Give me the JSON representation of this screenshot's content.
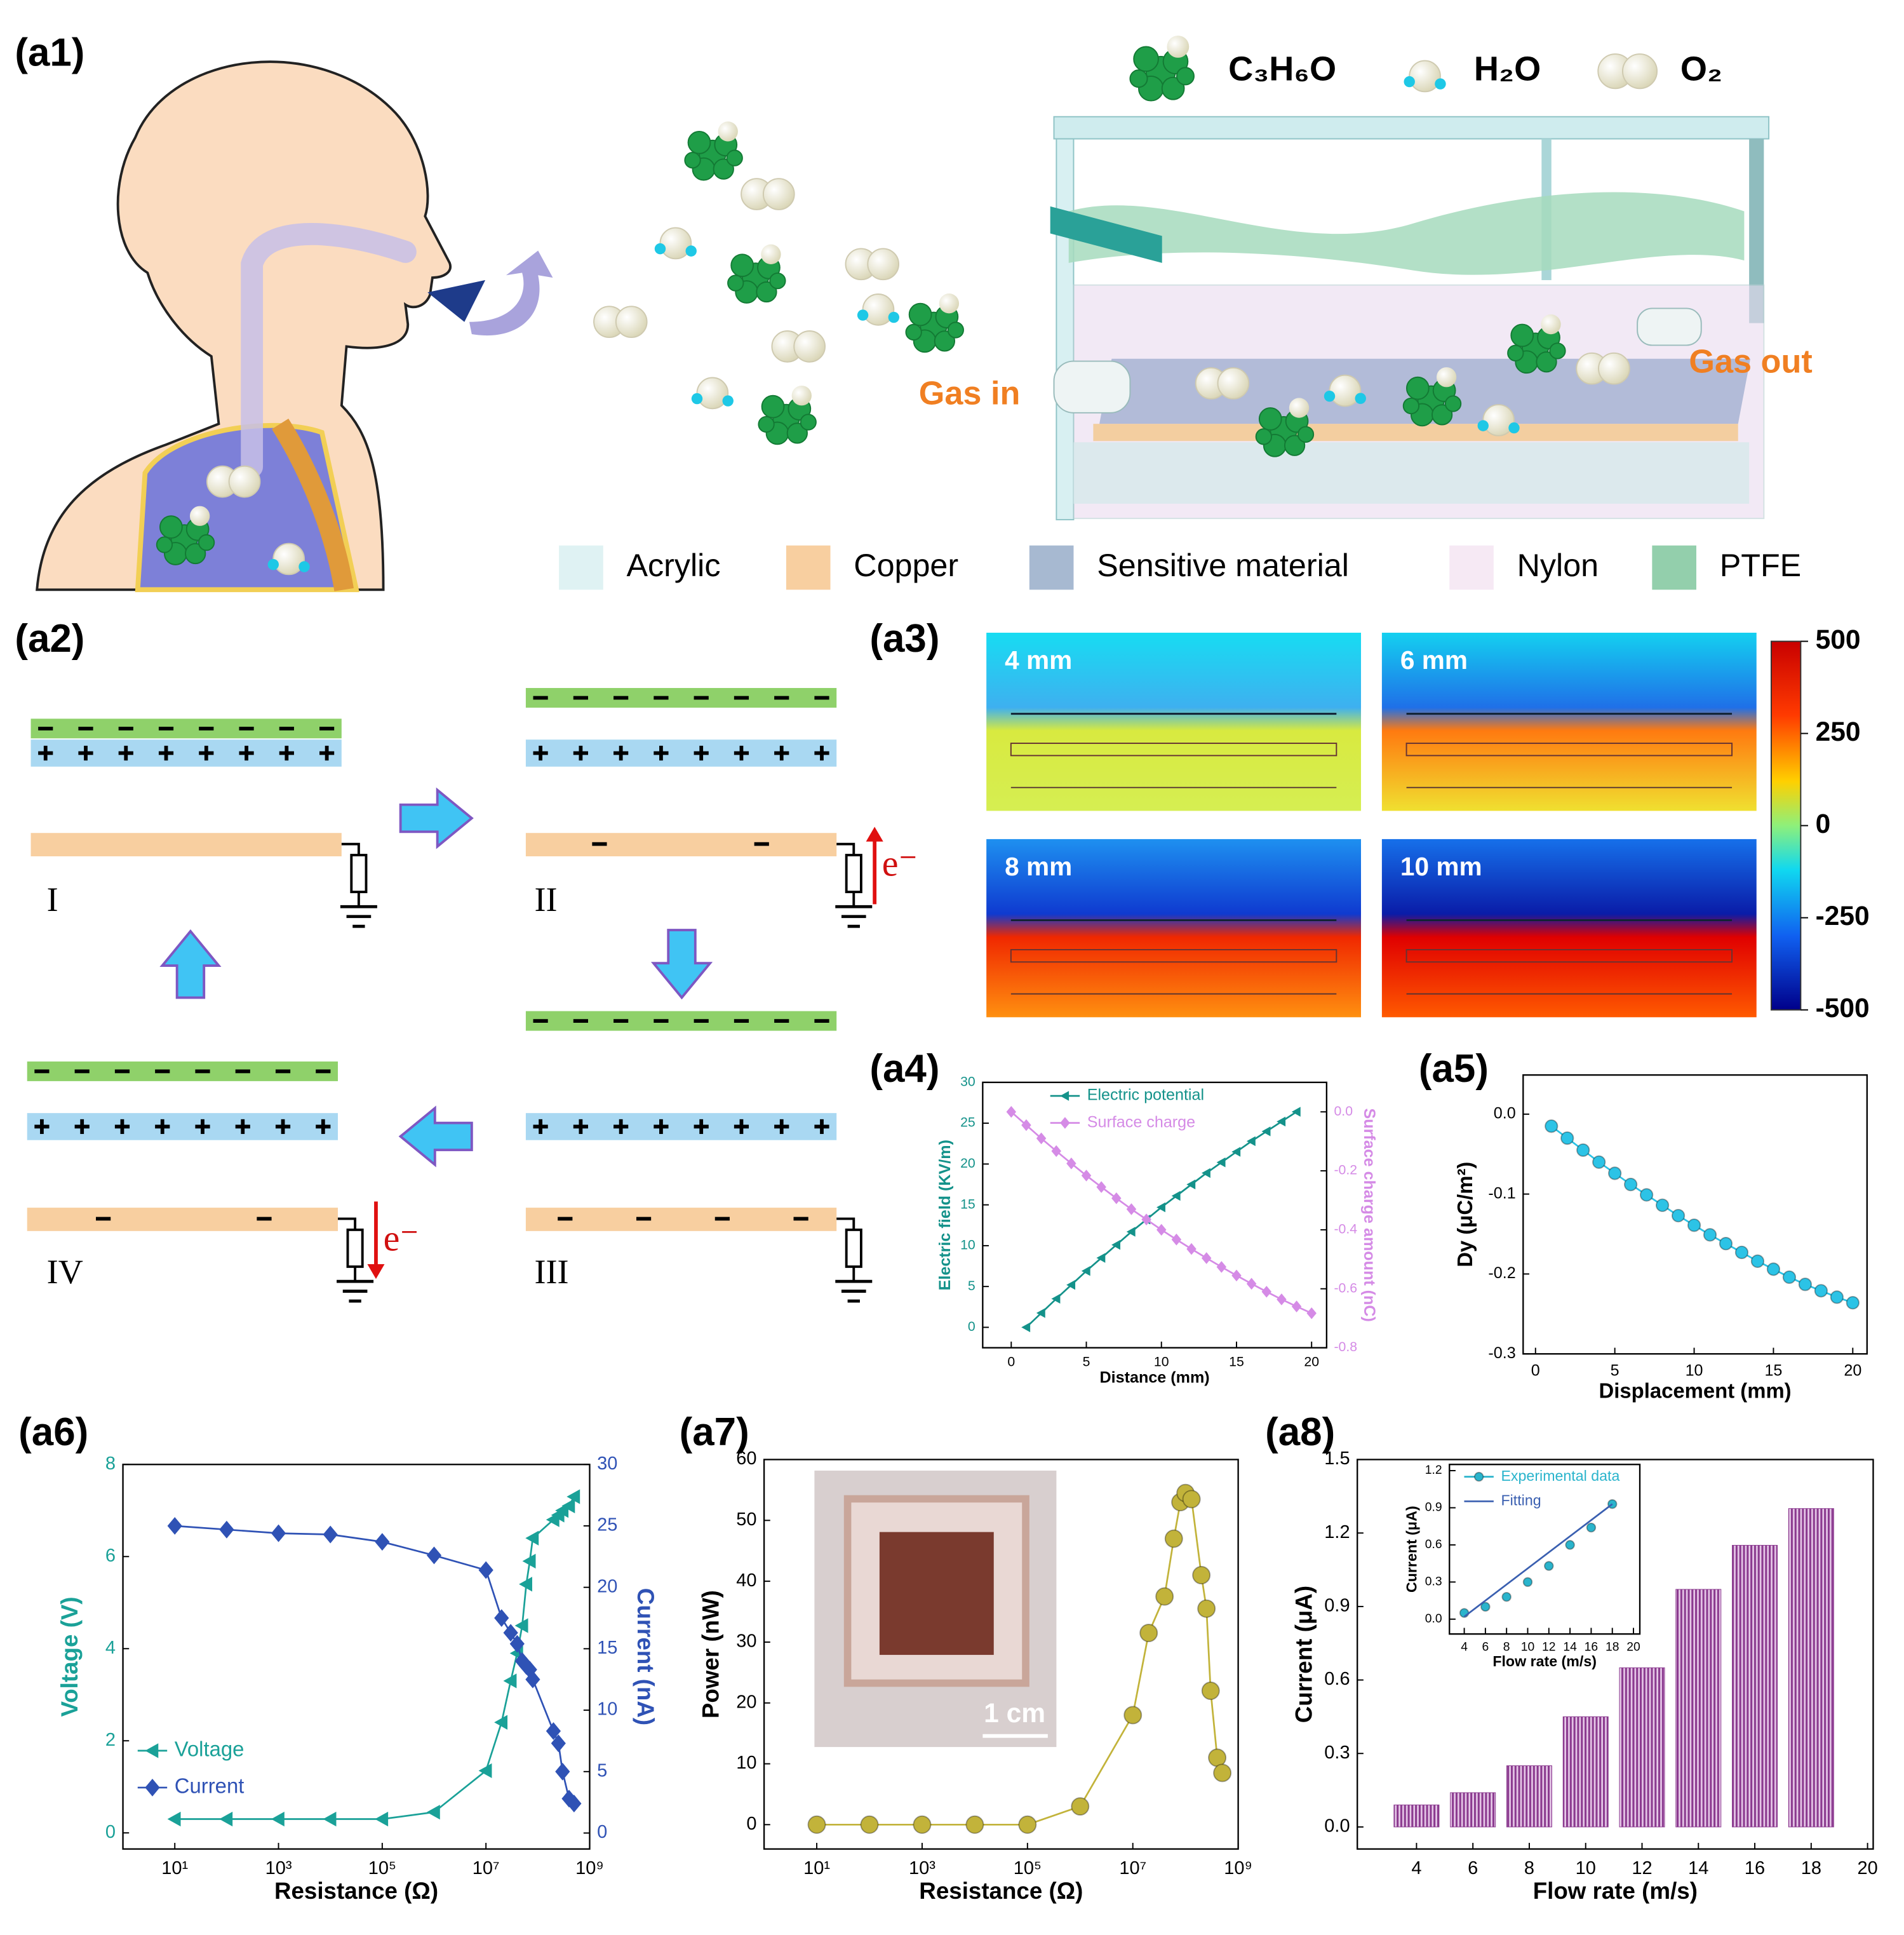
{
  "panel_labels": [
    "(a1)",
    "(a2)",
    "(a3)",
    "(a4)",
    "(a5)",
    "(a6)",
    "(a7)",
    "(a8)"
  ],
  "a1": {
    "molecules": [
      {
        "label": "C₃H₆O"
      },
      {
        "label": "H₂O"
      },
      {
        "label": "O₂"
      }
    ],
    "gas_in": "Gas in",
    "gas_out": "Gas out",
    "legend": [
      {
        "name": "Acrylic",
        "color": "#dff2f3"
      },
      {
        "name": "Copper",
        "color": "#f8cfa0"
      },
      {
        "name": "Sensitive material",
        "color": "#a7b9d1"
      },
      {
        "name": "Nylon",
        "color": "#f6e9f4"
      },
      {
        "name": "PTFE",
        "color": "#93cfac"
      }
    ]
  },
  "a2": {
    "stages": [
      "I",
      "II",
      "III",
      "IV"
    ],
    "electron": "e⁻"
  },
  "a3": {
    "gaps": [
      "4 mm",
      "6 mm",
      "8 mm",
      "10 mm"
    ],
    "clim": [
      -500,
      500
    ],
    "colorbar_ticks": [
      500,
      250,
      0,
      -250,
      -500
    ]
  },
  "chart_data": [
    {
      "type": "line",
      "xlabel": "Distance (mm)",
      "ylabel": "Electric field (KV/m)",
      "y2label": "Surface charge amount (nC)",
      "x": [
        0,
        1,
        2,
        3,
        4,
        5,
        6,
        7,
        8,
        9,
        10,
        11,
        12,
        13,
        14,
        15,
        16,
        17,
        18,
        19,
        20
      ],
      "xlim": [
        -1.9,
        21
      ],
      "xticks": [
        0,
        5,
        10,
        15,
        20
      ],
      "ylim": [
        -2.5,
        30
      ],
      "yticks": [
        0,
        5,
        10,
        15,
        20,
        25,
        30
      ],
      "y2lim": [
        -0.8,
        0.1
      ],
      "y2ticks": [
        {
          "value": 0,
          "label": "0.0"
        },
        -0.2,
        -0.4,
        -0.6,
        -0.8
      ],
      "legend": "upper center",
      "series": [
        {
          "name": "Electric potential",
          "color": "#14928a",
          "marker": "triangle-left",
          "values": [
            null,
            0,
            1.75,
            3.5,
            5.2,
            6.9,
            8.5,
            10.1,
            11.7,
            13.2,
            14.7,
            16.1,
            17.5,
            18.9,
            20.2,
            21.5,
            22.8,
            24.0,
            25.2,
            26.4,
            null
          ]
        },
        {
          "name": "Surface charge",
          "color": "#d58be6",
          "marker": "diamond",
          "axis": "y2",
          "values": [
            0,
            -0.045,
            -0.09,
            -0.133,
            -0.175,
            -0.216,
            -0.255,
            -0.293,
            -0.33,
            -0.365,
            -0.4,
            -0.433,
            -0.465,
            -0.496,
            -0.526,
            -0.555,
            -0.583,
            -0.61,
            -0.636,
            -0.66,
            -0.683
          ]
        }
      ]
    },
    {
      "type": "line",
      "xlabel": "Displacement (mm)",
      "ylabel": "Dy (μC/m²)",
      "x": [
        1,
        2,
        3,
        4,
        5,
        6,
        7,
        8,
        9,
        10,
        11,
        12,
        13,
        14,
        15,
        16,
        17,
        18,
        19,
        20
      ],
      "xlim": [
        -0.78,
        20.9
      ],
      "xticks": [
        0,
        5,
        10,
        15,
        20
      ],
      "ylim": [
        -0.3,
        0.049
      ],
      "yticks": [
        {
          "value": 0,
          "label": "0.0"
        },
        -0.1,
        -0.2,
        -0.3
      ],
      "series": [
        {
          "color": "#2cc3e6",
          "marker": "circle",
          "values": [
            -0.015,
            -0.03,
            -0.045,
            -0.06,
            -0.074,
            -0.088,
            -0.101,
            -0.114,
            -0.127,
            -0.139,
            -0.151,
            -0.162,
            -0.173,
            -0.184,
            -0.194,
            -0.204,
            -0.213,
            -0.221,
            -0.229,
            -0.236
          ]
        }
      ]
    },
    {
      "type": "line",
      "xlabel": "Resistance (Ω)",
      "ylabel": "Voltage (V)",
      "y2label": "Current (nA)",
      "xlog": true,
      "x": [
        10,
        100,
        1000,
        10000,
        100000,
        1000000,
        10000000,
        20000000,
        30000000,
        40000000,
        50000000,
        60000000,
        70000000,
        80000000,
        200000000,
        250000000,
        300000000,
        400000000,
        500000000
      ],
      "xlim": [
        1,
        1000000000
      ],
      "xticks": [
        {
          "value": 10,
          "label": "10¹"
        },
        {
          "value": 1000,
          "label": "10³"
        },
        {
          "value": 100000,
          "label": "10⁵"
        },
        {
          "value": 10000000,
          "label": "10⁷"
        },
        {
          "value": 1000000000,
          "label": "10⁹"
        }
      ],
      "ylim": [
        -0.35,
        8
      ],
      "yticks": [
        0,
        2,
        4,
        6,
        8
      ],
      "y2lim": [
        -1.3,
        30
      ],
      "y2ticks": [
        0,
        5,
        10,
        15,
        20,
        25,
        30
      ],
      "legend": "lower left",
      "series": [
        {
          "name": "Voltage",
          "color": "#1aa198",
          "marker": "triangle-left",
          "values": [
            0.3,
            0.3,
            0.3,
            0.3,
            0.3,
            0.45,
            1.35,
            2.4,
            3.3,
            3.9,
            4.5,
            5.4,
            5.9,
            6.4,
            6.8,
            6.9,
            7.0,
            7.1,
            7.3
          ]
        },
        {
          "name": "Current",
          "color": "#2f52b5",
          "marker": "diamond",
          "axis": "y2",
          "values": [
            25,
            24.7,
            24.4,
            24.3,
            23.7,
            22.6,
            21.4,
            17.5,
            16.3,
            15.4,
            14,
            13.6,
            13.3,
            12.5,
            8.3,
            7.3,
            5,
            2.8,
            2.4
          ]
        }
      ]
    },
    {
      "type": "line",
      "xlabel": "Resistance (Ω)",
      "ylabel": "Power (nW)",
      "xlog": true,
      "annotation": "1 cm",
      "x": [
        10,
        100,
        1000,
        10000,
        100000,
        1000000,
        10000000,
        20000000,
        40000000,
        60000000,
        80000000,
        100000000,
        130000000,
        200000000,
        250000000,
        300000000,
        400000000,
        500000000
      ],
      "xlim": [
        1,
        1000000000
      ],
      "xticks": [
        {
          "value": 10,
          "label": "10¹"
        },
        {
          "value": 1000,
          "label": "10³"
        },
        {
          "value": 100000,
          "label": "10⁵"
        },
        {
          "value": 10000000,
          "label": "10⁷"
        },
        {
          "value": 1000000000,
          "label": "10⁹"
        }
      ],
      "ylim": [
        -4,
        60
      ],
      "yticks": [
        0,
        10,
        20,
        30,
        40,
        50,
        60
      ],
      "series": [
        {
          "color": "#c2b33a",
          "marker": "circle",
          "values": [
            0,
            0,
            0,
            0,
            0,
            3,
            18,
            31.5,
            37.5,
            47,
            53,
            54.5,
            53.5,
            41,
            35.5,
            22,
            11,
            8.5
          ]
        }
      ]
    },
    {
      "type": "bar",
      "xlabel": "Flow rate (m/s)",
      "ylabel": "Current (μA)",
      "color": "#8b3a8f",
      "x": [
        4,
        6,
        8,
        10,
        12,
        14,
        16,
        18
      ],
      "values": [
        0.09,
        0.14,
        0.25,
        0.45,
        0.65,
        0.97,
        1.15,
        1.3
      ],
      "xlim": [
        1.9,
        20.2
      ],
      "xticks": [
        4,
        6,
        8,
        10,
        12,
        14,
        16,
        18,
        20
      ],
      "ylim": [
        -0.09,
        1.5
      ],
      "yticks": [
        {
          "value": 0,
          "label": "0.0"
        },
        0.3,
        0.6,
        0.9,
        1.2,
        1.5
      ]
    },
    {
      "type": "scatter",
      "xlabel": "Flow rate (m/s)",
      "ylabel": "Current (μA)",
      "xlim": [
        2.6,
        20.6
      ],
      "xticks": [
        4,
        6,
        8,
        10,
        12,
        14,
        16,
        18,
        20
      ],
      "ylim": [
        -0.12,
        1.25
      ],
      "yticks": [
        {
          "value": 0,
          "label": "0.0"
        },
        0.3,
        0.6,
        0.9,
        1.2
      ],
      "legend": "upper left",
      "series": [
        {
          "name": "Experimental data",
          "color": "#2ab4cc",
          "marker": "circle",
          "x": [
            4,
            6,
            8,
            10,
            12,
            14,
            16,
            18
          ],
          "values": [
            0.05,
            0.1,
            0.18,
            0.3,
            0.43,
            0.6,
            0.74,
            0.93
          ]
        },
        {
          "name": "Fitting",
          "color": "#3a5fb0",
          "marker": "none",
          "x": [
            4,
            18
          ],
          "values": [
            0.02,
            0.93
          ]
        }
      ]
    }
  ]
}
